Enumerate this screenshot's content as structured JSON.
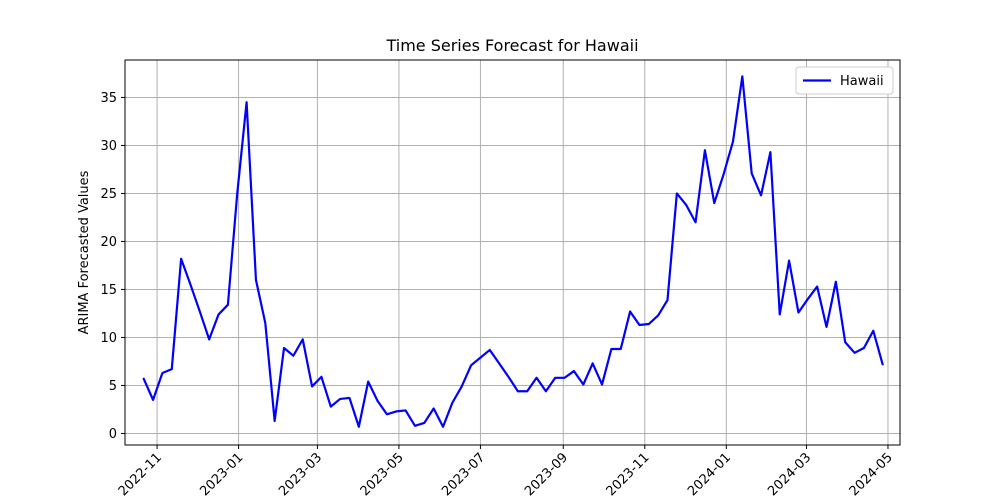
{
  "chart_data": {
    "type": "line",
    "title": "Time Series Forecast for Hawaii",
    "xlabel": "",
    "ylabel": "ARIMA Forecasted Values",
    "ylim": [
      -1.2,
      38.9
    ],
    "xlim": [
      "2022-10-08",
      "2024-05-10"
    ],
    "y_ticks": [
      0,
      5,
      10,
      15,
      20,
      25,
      30,
      35
    ],
    "x_ticks": [
      "2022-11",
      "2023-01",
      "2023-03",
      "2023-05",
      "2023-07",
      "2023-09",
      "2023-11",
      "2024-01",
      "2024-03",
      "2024-05"
    ],
    "grid": true,
    "legend_position": "top-right",
    "series": [
      {
        "name": "Hawaii",
        "color": "#0000ff",
        "x": [
          "2022-10-22",
          "2022-10-29",
          "2022-11-05",
          "2022-11-12",
          "2022-11-19",
          "2022-11-26",
          "2022-12-03",
          "2022-12-10",
          "2022-12-17",
          "2022-12-24",
          "2022-12-31",
          "2023-01-07",
          "2023-01-14",
          "2023-01-21",
          "2023-01-28",
          "2023-02-04",
          "2023-02-11",
          "2023-02-18",
          "2023-02-25",
          "2023-03-04",
          "2023-03-11",
          "2023-03-18",
          "2023-03-25",
          "2023-04-01",
          "2023-04-08",
          "2023-04-15",
          "2023-04-22",
          "2023-04-29",
          "2023-05-06",
          "2023-05-13",
          "2023-05-20",
          "2023-05-27",
          "2023-06-03",
          "2023-06-10",
          "2023-06-17",
          "2023-06-24",
          "2023-07-01",
          "2023-07-08",
          "2023-07-15",
          "2023-07-22",
          "2023-07-29",
          "2023-08-05",
          "2023-08-12",
          "2023-08-19",
          "2023-08-26",
          "2023-09-02",
          "2023-09-09",
          "2023-09-16",
          "2023-09-23",
          "2023-09-30",
          "2023-10-07",
          "2023-10-14",
          "2023-10-21",
          "2023-10-28",
          "2023-11-04",
          "2023-11-11",
          "2023-11-18",
          "2023-11-25",
          "2023-12-02",
          "2023-12-09",
          "2023-12-16",
          "2023-12-23",
          "2023-12-30",
          "2024-01-06",
          "2024-01-13",
          "2024-01-20",
          "2024-01-27",
          "2024-02-03",
          "2024-02-10",
          "2024-02-17",
          "2024-02-24",
          "2024-03-02",
          "2024-03-09",
          "2024-03-16",
          "2024-03-23",
          "2024-03-30",
          "2024-04-06",
          "2024-04-13",
          "2024-04-20",
          "2024-04-27"
        ],
        "values": [
          5.7,
          3.5,
          6.3,
          6.7,
          18.2,
          15.5,
          12.7,
          9.8,
          12.4,
          13.4,
          25.0,
          34.5,
          16.0,
          11.5,
          1.3,
          8.9,
          8.1,
          9.8,
          4.9,
          5.9,
          2.8,
          3.6,
          3.7,
          0.7,
          5.4,
          3.4,
          2.0,
          2.3,
          2.4,
          0.8,
          1.1,
          2.6,
          0.7,
          3.2,
          4.9,
          7.1,
          7.9,
          8.7,
          7.3,
          5.9,
          4.4,
          4.4,
          5.8,
          4.4,
          5.8,
          5.8,
          6.5,
          5.1,
          7.3,
          5.1,
          8.8,
          8.8,
          12.7,
          11.3,
          11.4,
          12.3,
          13.9,
          25.0,
          23.8,
          22.0,
          29.5,
          24.0,
          27.0,
          30.4,
          37.2,
          27.1,
          24.8,
          29.3,
          12.4,
          18.0,
          12.6,
          14.0,
          15.3,
          11.1,
          15.8,
          9.5,
          8.4,
          8.9,
          10.7,
          7.2
        ]
      }
    ]
  }
}
